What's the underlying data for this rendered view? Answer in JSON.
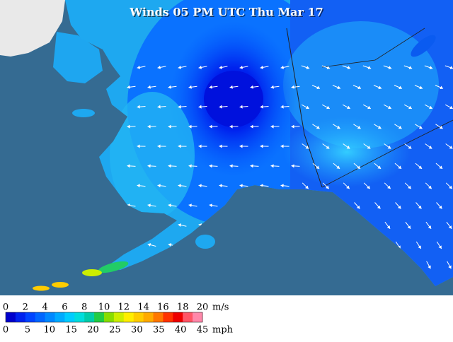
{
  "title": "Winds 05 PM UTC Thu Mar 17",
  "legend": {
    "colors": [
      "#0000cc",
      "#0022ee",
      "#0044ff",
      "#0066ff",
      "#0088ff",
      "#00aaff",
      "#00ccff",
      "#00dddd",
      "#00ccaa",
      "#22cc44",
      "#88dd00",
      "#ccee00",
      "#ffee00",
      "#ffcc00",
      "#ffaa00",
      "#ff7700",
      "#ff3300",
      "#ee0000",
      "#ff5566",
      "#ff88aa"
    ],
    "ms_ticks": [
      0,
      2,
      4,
      6,
      8,
      10,
      12,
      14,
      16,
      18,
      20
    ],
    "ms_unit": "m/s",
    "mph_ticks": [
      0,
      5,
      10,
      15,
      20,
      25,
      30,
      35,
      40,
      45
    ],
    "mph_unit": "mph"
  }
}
